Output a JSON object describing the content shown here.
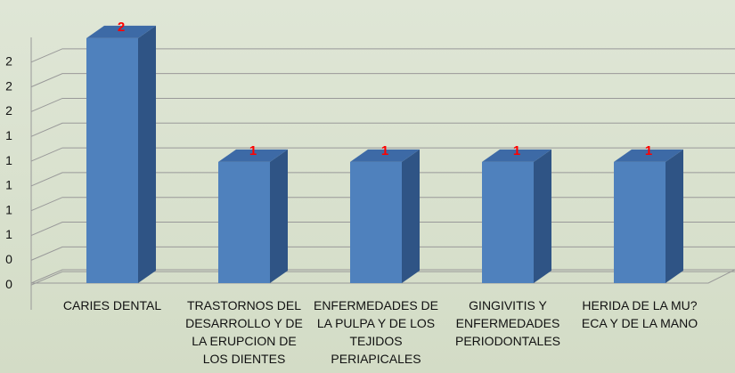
{
  "chart_data": {
    "type": "bar3d",
    "categories": [
      "CARIES DENTAL",
      "TRASTORNOS DEL DESARROLLO Y DE LA ERUPCION DE LOS DIENTES",
      "ENFERMEDADES DE LA PULPA Y DE LOS TEJIDOS PERIAPICALES",
      "GINGIVITIS Y ENFERMEDADES PERIODONTALES",
      "HERIDA DE LA MU?ECA Y DE LA MANO"
    ],
    "values": [
      2,
      1,
      1,
      1,
      1
    ],
    "color": "#4f81bd",
    "label_color": "#ff0000",
    "ylim": [
      0,
      2.2
    ],
    "yticks": [
      {
        "value": 0.2,
        "label": "0"
      },
      {
        "value": 0.4,
        "label": "0"
      },
      {
        "value": 0.6,
        "label": "1"
      },
      {
        "value": 0.8,
        "label": "1"
      },
      1,
      {
        "value": 1.2,
        "label": "1"
      },
      {
        "value": 1.4,
        "label": "1"
      },
      {
        "value": 1.6,
        "label": "2"
      },
      {
        "value": 1.8,
        "label": "2"
      },
      2
    ],
    "grid": true
  }
}
